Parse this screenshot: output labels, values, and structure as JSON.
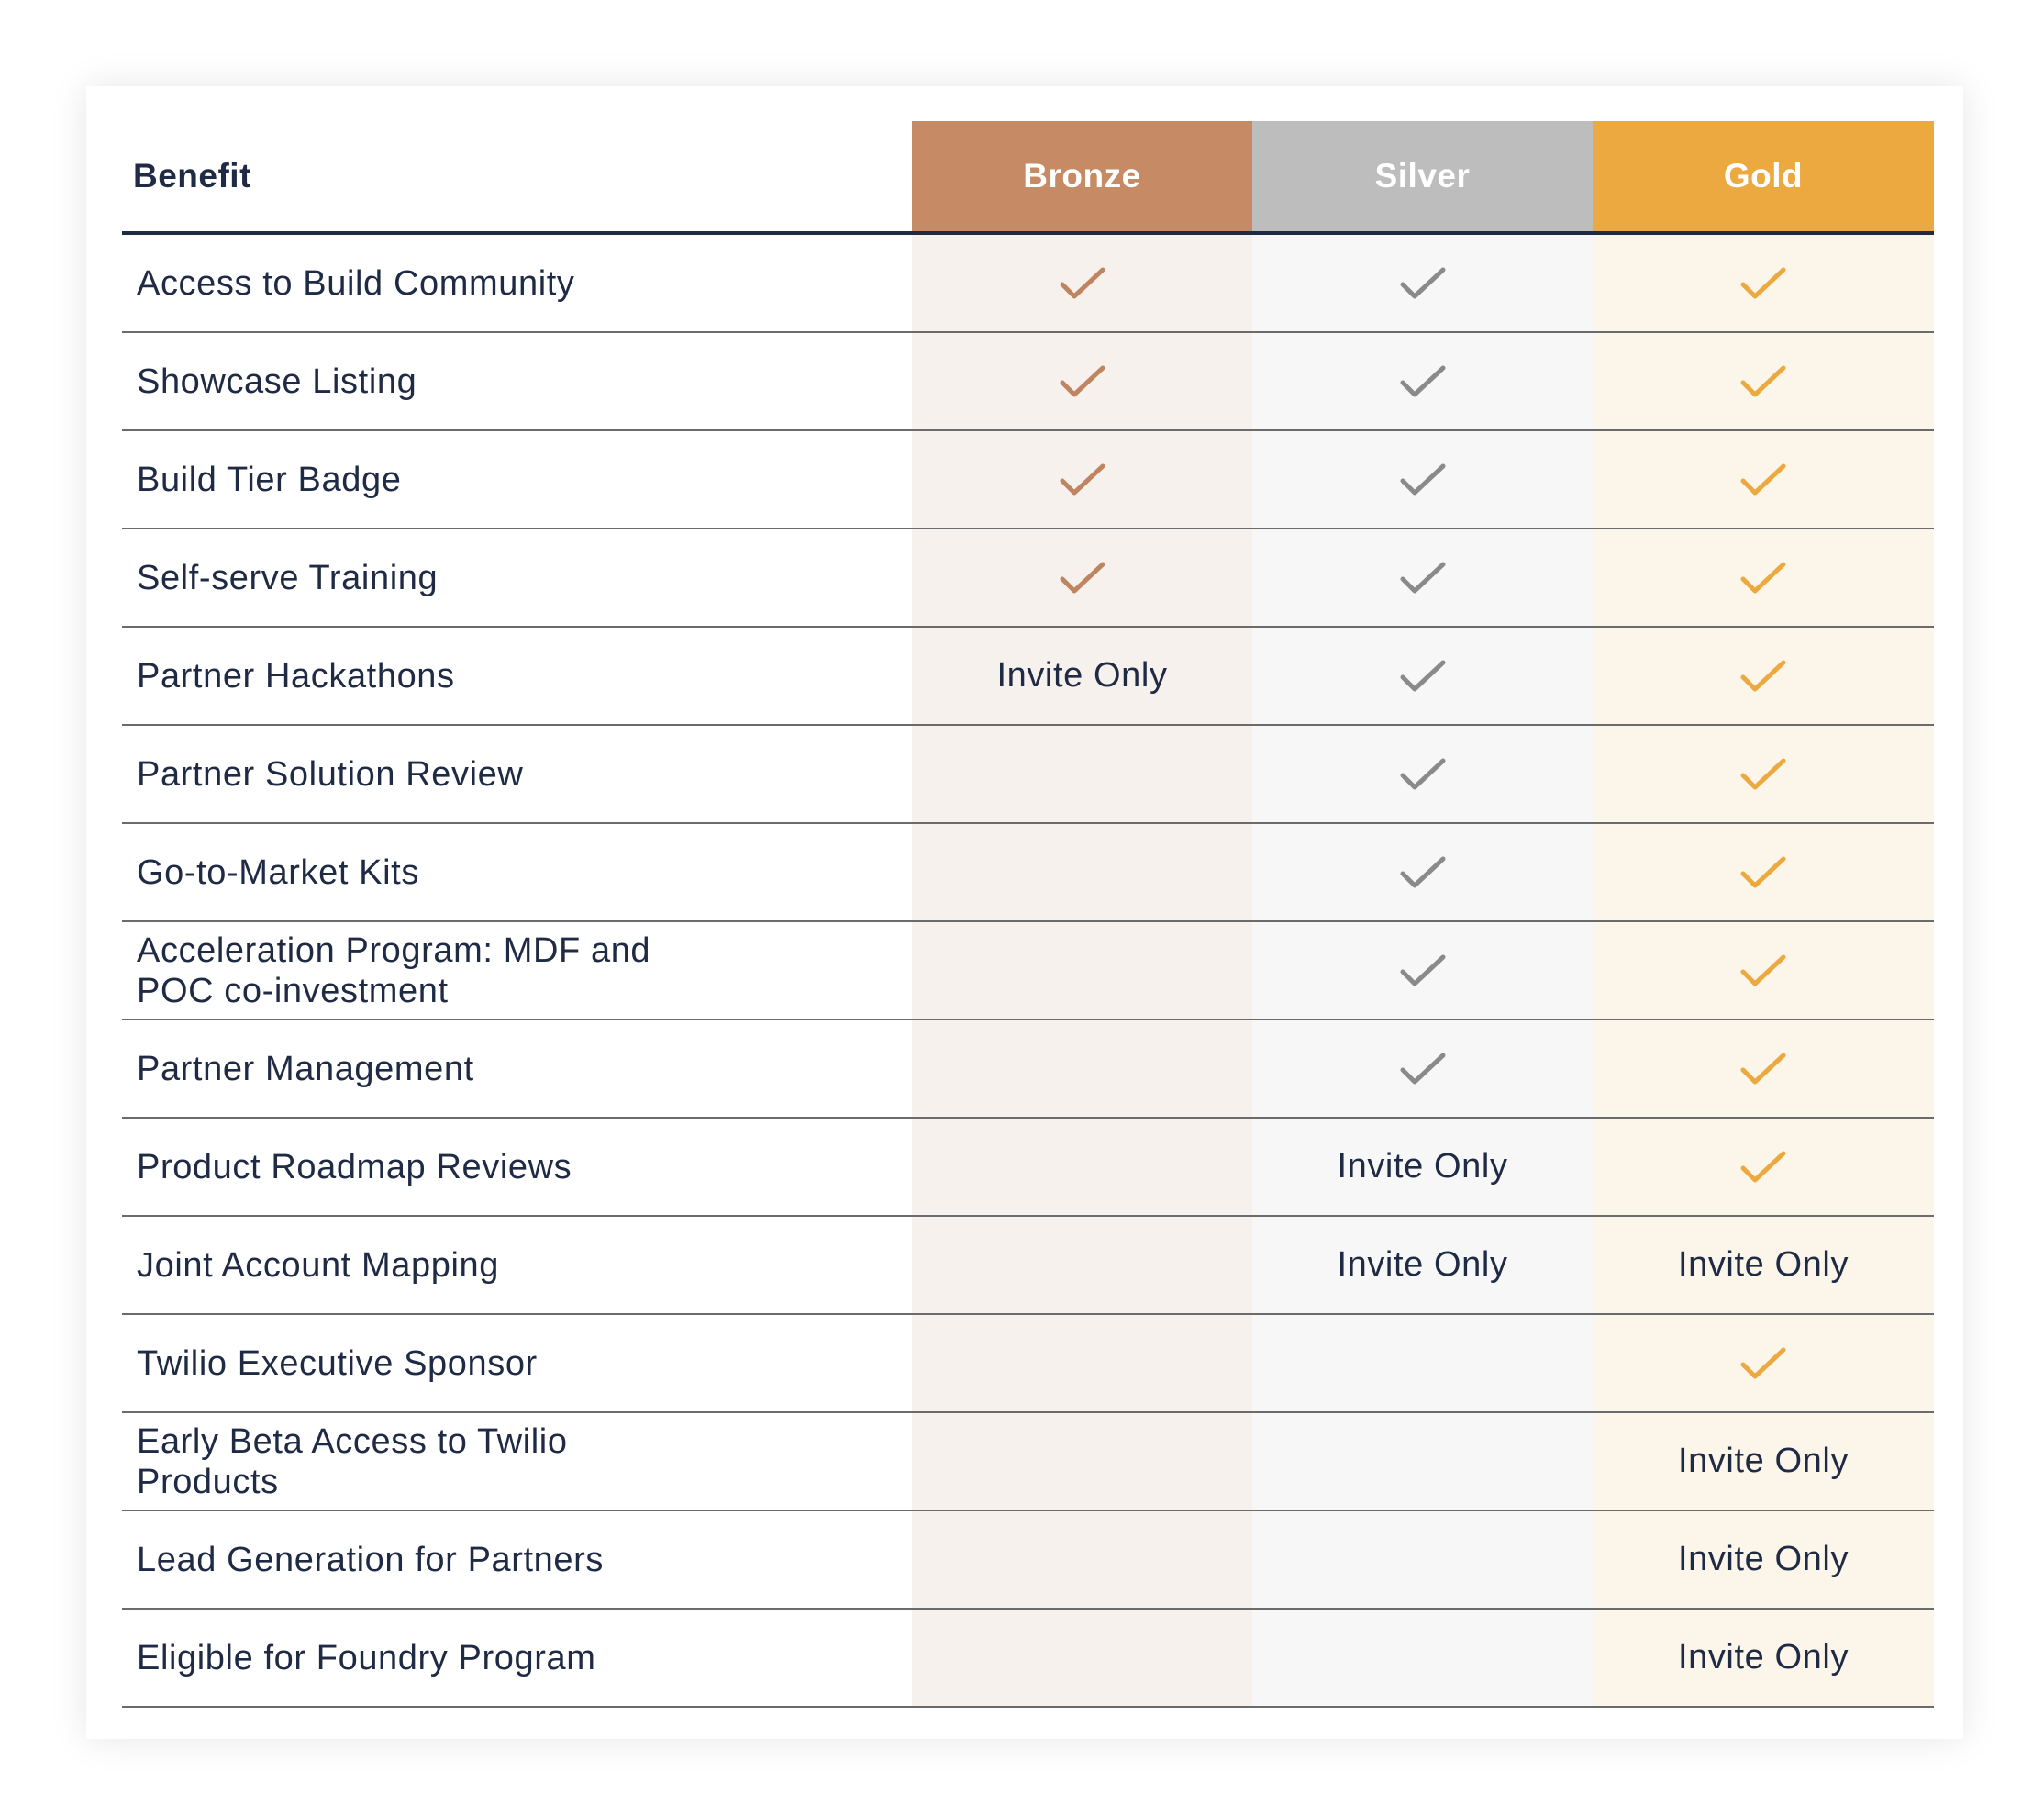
{
  "colors": {
    "bronze": "#c68b65",
    "silver": "#bdbdbd",
    "gold": "#eba93f",
    "bronze_check": "#bf8460",
    "silver_check": "#8a8a8a",
    "gold_check": "#eba93f",
    "text": "#1f2a44"
  },
  "table": {
    "header": {
      "benefit": "Benefit",
      "bronze": "Bronze",
      "silver": "Silver",
      "gold": "Gold"
    },
    "rows": [
      {
        "benefit": "Access to Build Community",
        "bronze": "check",
        "silver": "check",
        "gold": "check"
      },
      {
        "benefit": "Showcase Listing",
        "bronze": "check",
        "silver": "check",
        "gold": "check"
      },
      {
        "benefit": "Build Tier Badge",
        "bronze": "check",
        "silver": "check",
        "gold": "check"
      },
      {
        "benefit": "Self-serve Training",
        "bronze": "check",
        "silver": "check",
        "gold": "check"
      },
      {
        "benefit": "Partner Hackathons",
        "bronze": "Invite Only",
        "silver": "check",
        "gold": "check"
      },
      {
        "benefit": "Partner Solution Review",
        "bronze": "",
        "silver": "check",
        "gold": "check"
      },
      {
        "benefit": "Go-to-Market Kits",
        "bronze": "",
        "silver": "check",
        "gold": "check"
      },
      {
        "benefit": "Acceleration Program: MDF and POC co-investment",
        "bronze": "",
        "silver": "check",
        "gold": "check"
      },
      {
        "benefit": "Partner Management",
        "bronze": "",
        "silver": "check",
        "gold": "check"
      },
      {
        "benefit": "Product Roadmap Reviews",
        "bronze": "",
        "silver": "Invite Only",
        "gold": "check"
      },
      {
        "benefit": "Joint Account Mapping",
        "bronze": "",
        "silver": "Invite Only",
        "gold": "Invite Only"
      },
      {
        "benefit": "Twilio Executive Sponsor",
        "bronze": "",
        "silver": "",
        "gold": "check"
      },
      {
        "benefit": "Early Beta Access to Twilio Products",
        "bronze": "",
        "silver": "",
        "gold": "Invite Only"
      },
      {
        "benefit": "Lead Generation for Partners",
        "bronze": "",
        "silver": "",
        "gold": "Invite Only"
      },
      {
        "benefit": "Eligible for Foundry Program",
        "bronze": "",
        "silver": "",
        "gold": "Invite Only"
      }
    ]
  }
}
